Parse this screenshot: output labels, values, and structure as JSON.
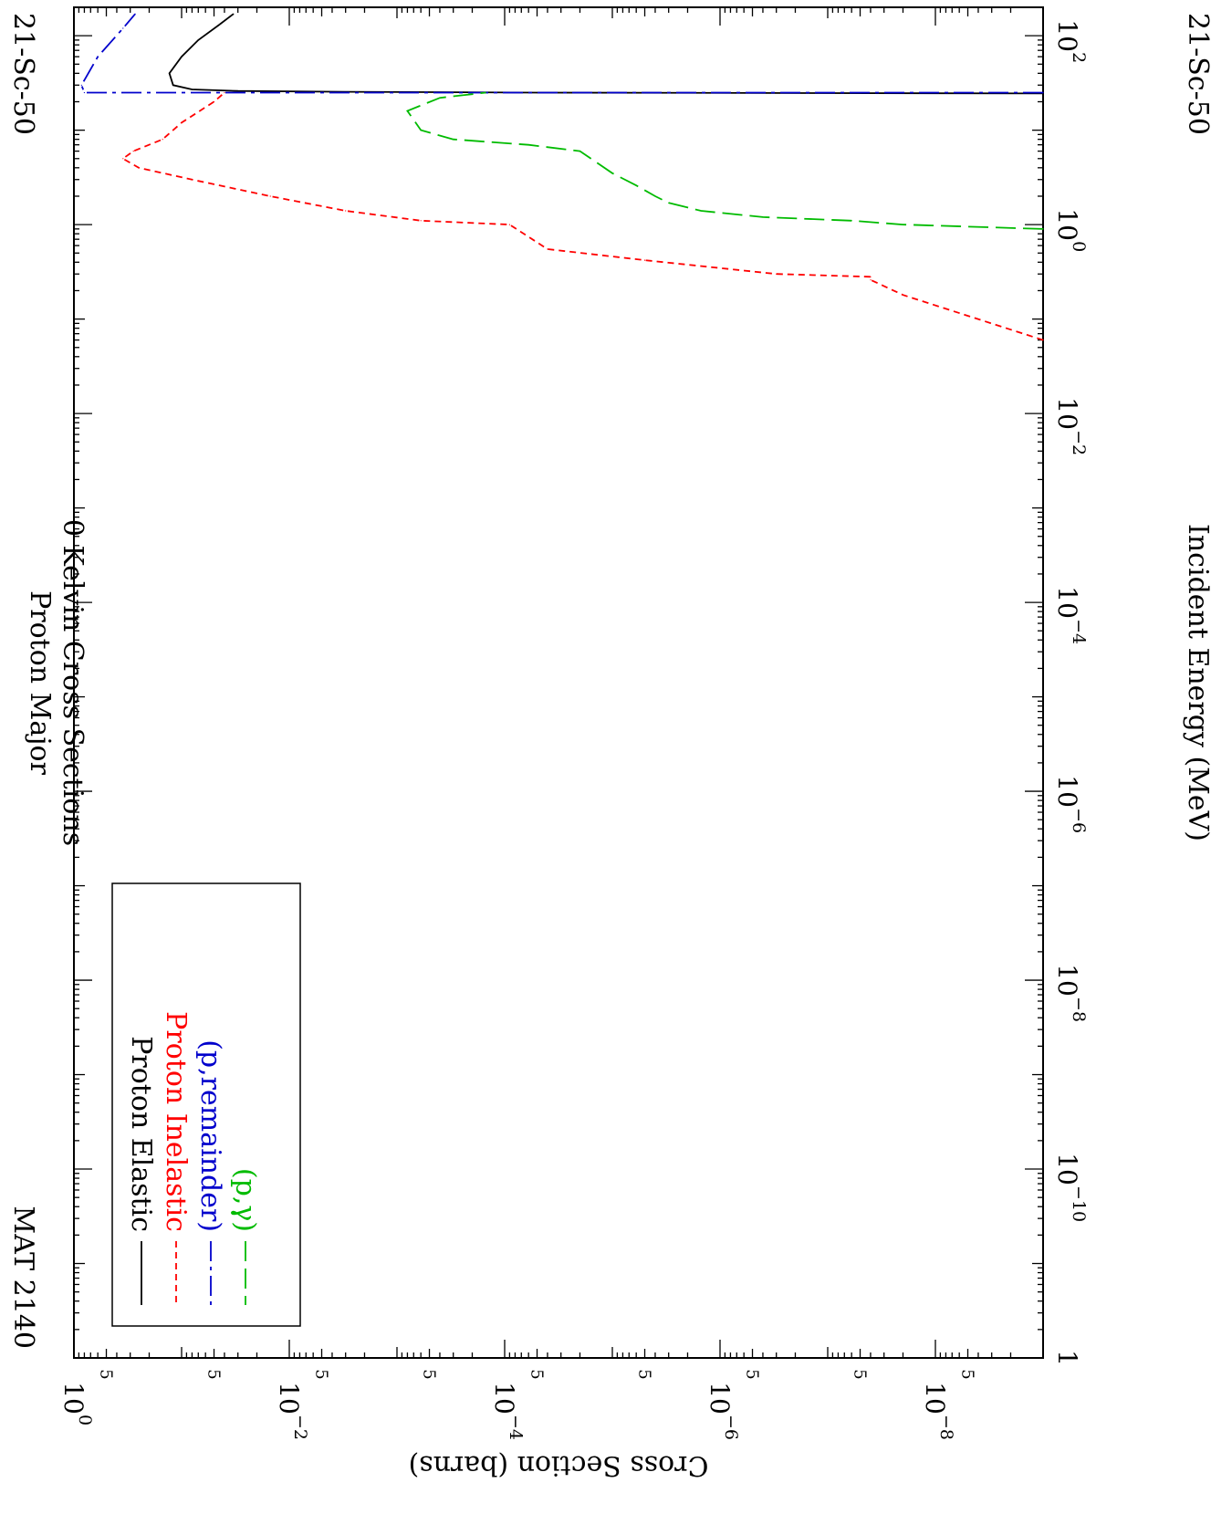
{
  "chart_data": {
    "type": "line",
    "orientation": "rotated-90-clockwise",
    "title": "Proton Major",
    "subtitle": "0 Kelvin Cross Sections",
    "corner_left": "MAT 2140",
    "corner_right": "21-Sc-50",
    "corner_right_bottom": "21-Sc-50",
    "xlabel": "Incident Energy (MeV)",
    "ylabel": "Cross Section (barns)",
    "x_scale": "log",
    "y_scale": "log",
    "xlim": [
      1e-12,
      200
    ],
    "ylim": [
      1e-09,
      1
    ],
    "x_ticks": [
      {
        "base": "1",
        "exp": ""
      },
      {
        "base": "10",
        "exp": "−10"
      },
      {
        "base": "10",
        "exp": "−8"
      },
      {
        "base": "10",
        "exp": "−6"
      },
      {
        "base": "10",
        "exp": "−4"
      },
      {
        "base": "10",
        "exp": "−2"
      },
      {
        "base": "10",
        "exp": "0"
      },
      {
        "base": "10",
        "exp": "2"
      }
    ],
    "y_ticks": [
      {
        "base": "10",
        "exp": "0"
      },
      {
        "base": "10",
        "exp": "−2"
      },
      {
        "base": "10",
        "exp": "−4"
      },
      {
        "base": "10",
        "exp": "−6"
      },
      {
        "base": "10",
        "exp": "−8"
      }
    ],
    "y_minor_label": "5",
    "legend_position": "bottom-left",
    "series": [
      {
        "name": "Proton Elastic",
        "color": "#000000",
        "dash": "solid",
        "points": [
          [
            24.5,
            1e-09
          ],
          [
            25,
            5e-05
          ],
          [
            25.5,
            0.003
          ],
          [
            26,
            0.03
          ],
          [
            27,
            0.08
          ],
          [
            30,
            0.12
          ],
          [
            40,
            0.13
          ],
          [
            60,
            0.1
          ],
          [
            90,
            0.07
          ],
          [
            130,
            0.045
          ],
          [
            170,
            0.033
          ]
        ]
      },
      {
        "name": "Proton Inelastic",
        "color": "#ff0000",
        "dash": "short",
        "points": [
          [
            0.06,
            1e-09
          ],
          [
            0.18,
            2e-08
          ],
          [
            0.26,
            4e-08
          ],
          [
            0.28,
            4e-08
          ],
          [
            0.3,
            3e-07
          ],
          [
            0.42,
            5e-06
          ],
          [
            0.55,
            4e-05
          ],
          [
            1,
            9e-05
          ],
          [
            1.1,
            0.0006
          ],
          [
            1.4,
            0.003
          ],
          [
            2,
            0.015
          ],
          [
            3,
            0.08
          ],
          [
            4,
            0.25
          ],
          [
            5,
            0.35
          ],
          [
            6,
            0.28
          ],
          [
            8,
            0.15
          ],
          [
            12,
            0.1
          ],
          [
            20,
            0.05
          ],
          [
            25,
            0.04
          ]
        ]
      },
      {
        "name": "(p,remainder)",
        "color": "#0000cc",
        "dash": "dashdot",
        "points": [
          [
            25,
            1e-09
          ],
          [
            25,
            0.8
          ],
          [
            30,
            0.85
          ],
          [
            60,
            0.6
          ],
          [
            120,
            0.35
          ],
          [
            170,
            0.27
          ]
        ]
      },
      {
        "name": "(p,γ)",
        "color": "#00bb00",
        "dash": "long",
        "points": [
          [
            0.9,
            1e-09
          ],
          [
            1,
            2e-08
          ],
          [
            1.1,
            6e-08
          ],
          [
            1.2,
            4e-07
          ],
          [
            1.4,
            1.5e-06
          ],
          [
            1.7,
            3e-06
          ],
          [
            2,
            4e-06
          ],
          [
            2.6,
            6e-06
          ],
          [
            3.5,
            1e-05
          ],
          [
            6,
            2e-05
          ],
          [
            7,
            6e-05
          ],
          [
            8,
            0.0003
          ],
          [
            10,
            0.0006
          ],
          [
            16,
            0.0008
          ],
          [
            22,
            0.0004
          ],
          [
            25,
            0.00015
          ]
        ]
      }
    ]
  }
}
